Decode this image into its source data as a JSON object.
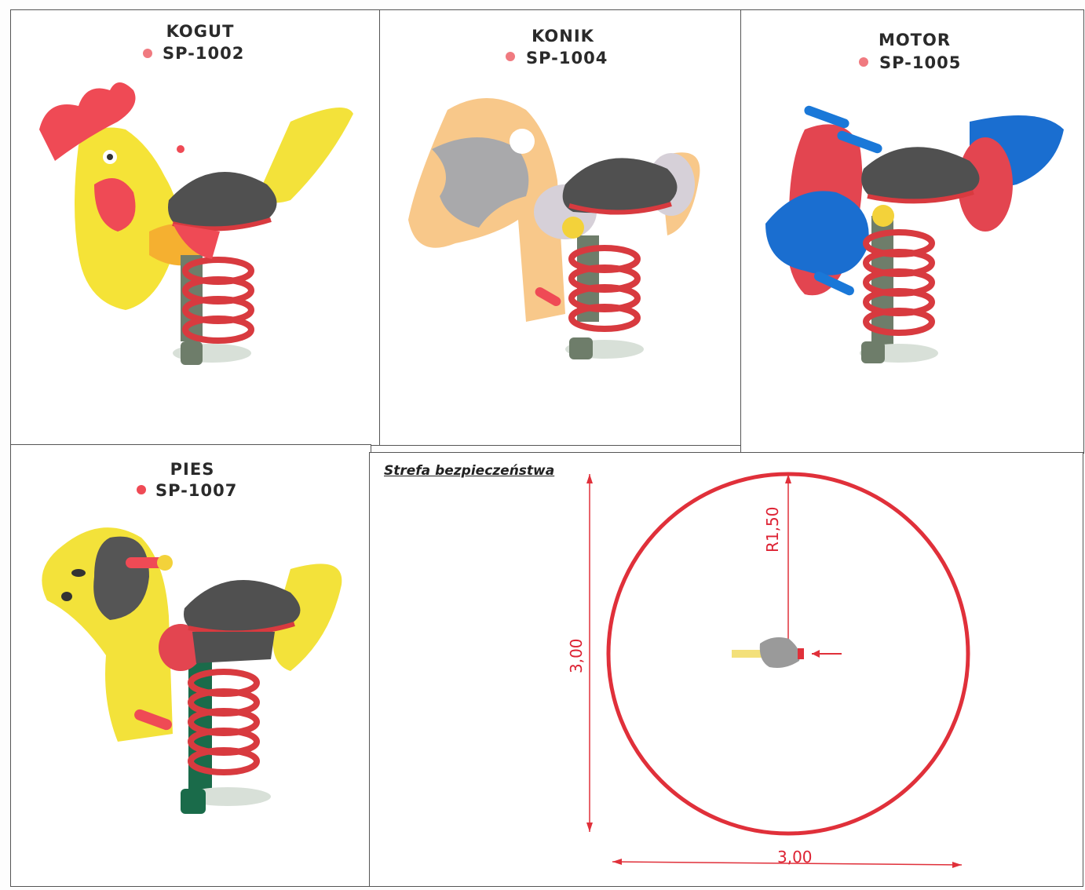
{
  "products": [
    {
      "name": "KOGUT",
      "code": "SP-1002",
      "icon": "rooster-spring-rider-image"
    },
    {
      "name": "KONIK",
      "code": "SP-1004",
      "icon": "horse-spring-rider-image"
    },
    {
      "name": "MOTOR",
      "code": "SP-1005",
      "icon": "motorbike-spring-rider-image"
    },
    {
      "name": "PIES",
      "code": "SP-1007",
      "icon": "dog-spring-rider-image"
    }
  ],
  "safety_zone": {
    "title": "Strefa bezpieczeństwa",
    "radius_label": "R1,50",
    "height_label": "3,00",
    "width_label": "3,00"
  },
  "colors": {
    "bullet": "#e8474f",
    "zone_circle": "#e0303a",
    "spring": "#d83a3f",
    "seat": "#505050"
  }
}
